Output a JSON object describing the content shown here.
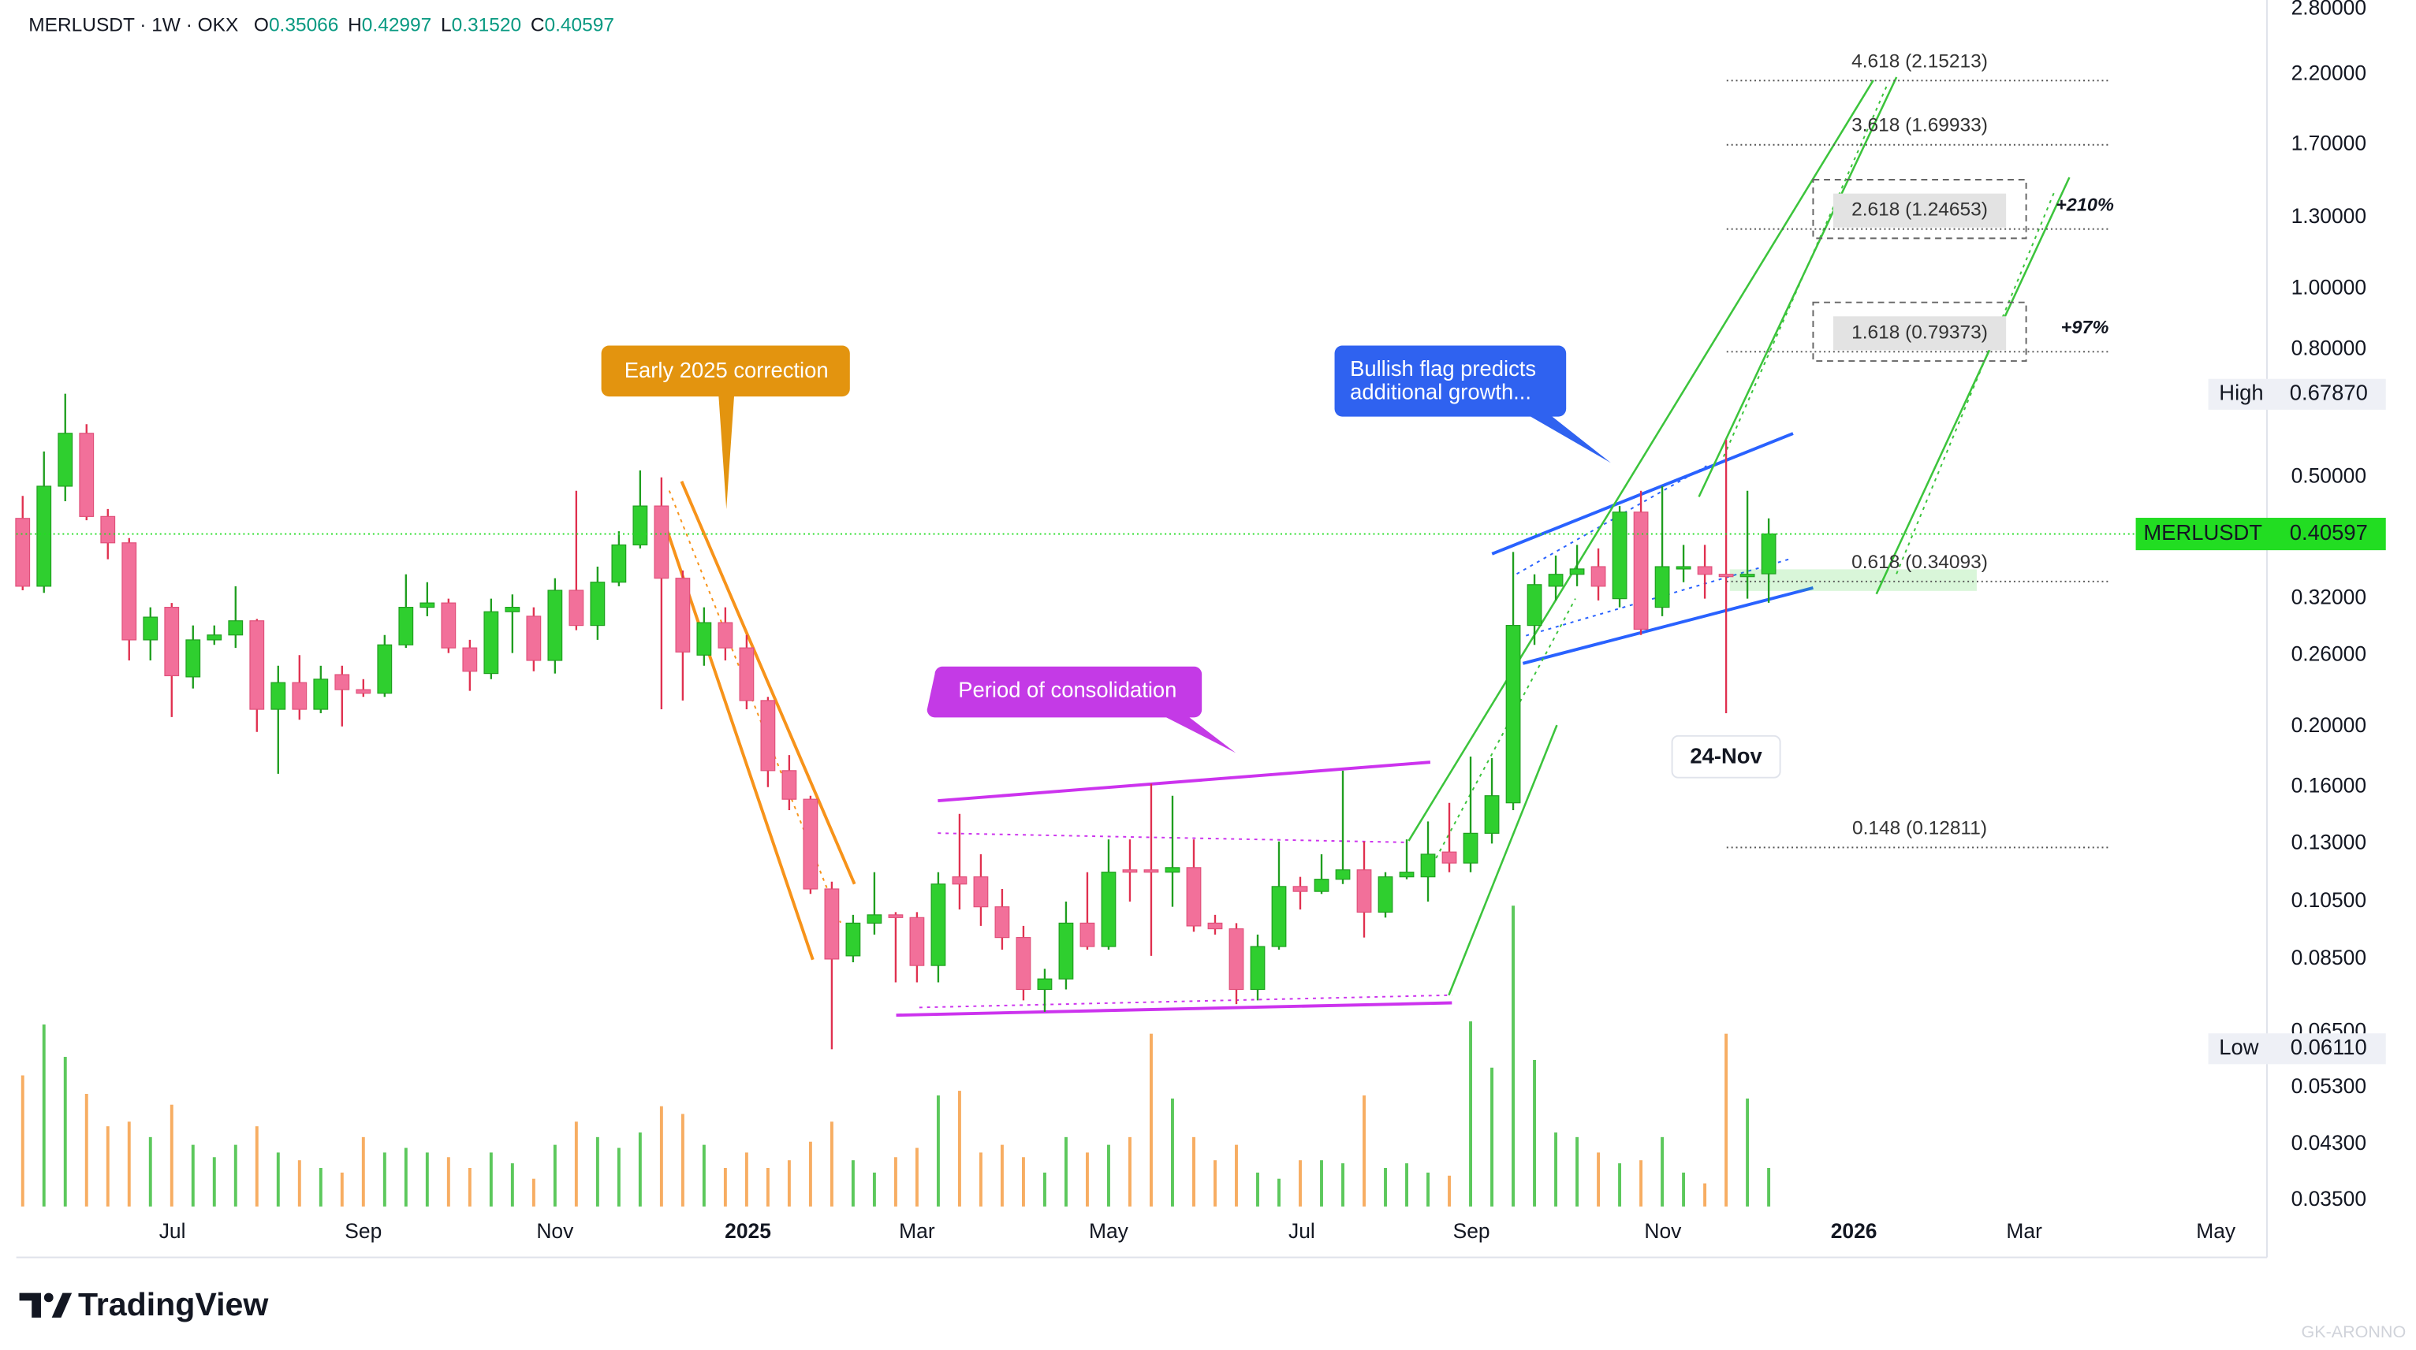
{
  "chart_data": {
    "type": "candlestick",
    "header": {
      "symbol": "MERLUSDT · 1W · OKX",
      "ohlc": [
        {
          "key": "O",
          "value": "0.35066"
        },
        {
          "key": "H",
          "value": "0.42997"
        },
        {
          "key": "L",
          "value": "0.31520"
        },
        {
          "key": "C",
          "value": "0.40597"
        }
      ]
    },
    "open": [
      0.43,
      0.335,
      0.484,
      0.588,
      0.433,
      0.393,
      0.275,
      0.31,
      0.24,
      0.275,
      0.28,
      0.295,
      0.213,
      0.235,
      0.213,
      0.242,
      0.229,
      0.226,
      0.27,
      0.31,
      0.315,
      0.267,
      0.243,
      0.305,
      0.3,
      0.255,
      0.33,
      0.29,
      0.34,
      0.39,
      0.45,
      0.345,
      0.26,
      0.293,
      0.267,
      0.22,
      0.17,
      0.153,
      0.11,
      0.086,
      0.097,
      0.1,
      0.099,
      0.083,
      0.115,
      0.115,
      0.103,
      0.092,
      0.076,
      0.079,
      0.097,
      0.089,
      0.118,
      0.118,
      0.117,
      0.119,
      0.097,
      0.095,
      0.076,
      0.089,
      0.111,
      0.109,
      0.114,
      0.118,
      0.101,
      0.115,
      0.115,
      0.126,
      0.121,
      0.135,
      0.151,
      0.29,
      0.335,
      0.35,
      0.36,
      0.32,
      0.44,
      0.31,
      0.357,
      0.36,
      0.35,
      0.348,
      0.35066
    ],
    "high": [
      0.467,
      0.55,
      0.68,
      0.608,
      0.445,
      0.4,
      0.31,
      0.315,
      0.29,
      0.29,
      0.335,
      0.297,
      0.25,
      0.26,
      0.25,
      0.25,
      0.238,
      0.28,
      0.35,
      0.34,
      0.32,
      0.275,
      0.32,
      0.325,
      0.31,
      0.345,
      0.476,
      0.36,
      0.41,
      0.513,
      0.5,
      0.355,
      0.31,
      0.31,
      0.28,
      0.223,
      0.18,
      0.155,
      0.113,
      0.1,
      0.117,
      0.101,
      0.101,
      0.117,
      0.145,
      0.125,
      0.11,
      0.096,
      0.082,
      0.105,
      0.117,
      0.132,
      0.132,
      0.162,
      0.155,
      0.132,
      0.1,
      0.097,
      0.093,
      0.131,
      0.115,
      0.125,
      0.17,
      0.131,
      0.117,
      0.132,
      0.141,
      0.151,
      0.179,
      0.178,
      0.38,
      0.35,
      0.375,
      0.39,
      0.385,
      0.45,
      0.476,
      0.484,
      0.39,
      0.39,
      0.574,
      0.476,
      0.42997
    ],
    "low": [
      0.33,
      0.327,
      0.458,
      0.427,
      0.37,
      0.255,
      0.255,
      0.207,
      0.23,
      0.27,
      0.267,
      0.196,
      0.168,
      0.205,
      0.21,
      0.2,
      0.223,
      0.223,
      0.267,
      0.3,
      0.262,
      0.228,
      0.238,
      0.262,
      0.245,
      0.243,
      0.285,
      0.275,
      0.335,
      0.385,
      0.213,
      0.22,
      0.25,
      0.255,
      0.213,
      0.16,
      0.147,
      0.108,
      0.061,
      0.084,
      0.093,
      0.078,
      0.078,
      0.078,
      0.102,
      0.096,
      0.088,
      0.073,
      0.07,
      0.076,
      0.088,
      0.088,
      0.105,
      0.086,
      0.103,
      0.094,
      0.093,
      0.072,
      0.073,
      0.088,
      0.102,
      0.108,
      0.112,
      0.092,
      0.099,
      0.114,
      0.105,
      0.117,
      0.117,
      0.13,
      0.147,
      0.27,
      0.318,
      0.335,
      0.318,
      0.31,
      0.28,
      0.3,
      0.34,
      0.32,
      0.21,
      0.32,
      0.3152
    ],
    "close": [
      0.335,
      0.484,
      0.588,
      0.433,
      0.393,
      0.275,
      0.299,
      0.241,
      0.275,
      0.28,
      0.295,
      0.213,
      0.235,
      0.213,
      0.238,
      0.229,
      0.226,
      0.27,
      0.31,
      0.315,
      0.267,
      0.245,
      0.305,
      0.31,
      0.255,
      0.33,
      0.29,
      0.34,
      0.39,
      0.45,
      0.345,
      0.263,
      0.293,
      0.267,
      0.22,
      0.17,
      0.153,
      0.11,
      0.085,
      0.097,
      0.1,
      0.099,
      0.083,
      0.112,
      0.112,
      0.103,
      0.092,
      0.076,
      0.079,
      0.097,
      0.089,
      0.117,
      0.117,
      0.117,
      0.119,
      0.096,
      0.095,
      0.076,
      0.089,
      0.111,
      0.109,
      0.114,
      0.118,
      0.101,
      0.115,
      0.117,
      0.125,
      0.121,
      0.135,
      0.155,
      0.29,
      0.337,
      0.35,
      0.357,
      0.335,
      0.44,
      0.286,
      0.36,
      0.36,
      0.35,
      0.348,
      0.35,
      0.40597
    ],
    "volume": [
      85,
      118,
      97,
      73,
      52,
      55,
      45,
      66,
      40,
      32,
      40,
      52,
      35,
      30,
      25,
      22,
      45,
      35,
      38,
      35,
      32,
      25,
      35,
      28,
      18,
      40,
      55,
      45,
      38,
      48,
      65,
      60,
      40,
      25,
      35,
      25,
      30,
      42,
      55,
      30,
      22,
      32,
      38,
      72,
      75,
      35,
      40,
      32,
      22,
      45,
      35,
      40,
      45,
      112,
      70,
      45,
      30,
      40,
      22,
      18,
      30,
      30,
      28,
      72,
      25,
      28,
      22,
      20,
      120,
      90,
      195,
      95,
      48,
      45,
      35,
      28,
      30,
      45,
      22,
      15,
      112,
      70,
      25
    ],
    "up_color": "#2fcf2f",
    "down_color": "#f2709a",
    "up_volume_color": "#5cc85c",
    "down_volume_color": "#f7ad62",
    "log_scale": true,
    "grid": false,
    "ylim": [
      0.0342,
      2.895
    ],
    "yticks": [
      {
        "value": 2.8,
        "label": "2.80000"
      },
      {
        "value": 2.2,
        "label": "2.20000"
      },
      {
        "value": 1.7,
        "label": "1.70000"
      },
      {
        "value": 1.3,
        "label": "1.30000"
      },
      {
        "value": 1.0,
        "label": "1.00000"
      },
      {
        "value": 0.8,
        "label": "0.80000"
      },
      {
        "value": 0.5,
        "label": "0.50000"
      },
      {
        "value": 0.32,
        "label": "0.32000"
      },
      {
        "value": 0.26,
        "label": "0.26000"
      },
      {
        "value": 0.2,
        "label": "0.20000"
      },
      {
        "value": 0.16,
        "label": "0.16000"
      },
      {
        "value": 0.13,
        "label": "0.13000"
      },
      {
        "value": 0.105,
        "label": "0.10500"
      },
      {
        "value": 0.085,
        "label": "0.08500"
      },
      {
        "value": 0.065,
        "label": "0.06500"
      },
      {
        "value": 0.053,
        "label": "0.05300"
      },
      {
        "value": 0.043,
        "label": "0.04300"
      },
      {
        "value": 0.035,
        "label": "0.03500"
      }
    ],
    "xlim": [
      -0.3,
      105.4
    ],
    "xticks": [
      {
        "value": 7.03,
        "label": "Jul"
      },
      {
        "value": 16.0,
        "label": "Sep"
      },
      {
        "value": 25.0,
        "label": "Nov"
      },
      {
        "value": 34.06,
        "label": "2025"
      },
      {
        "value": 42.0,
        "label": "Mar"
      },
      {
        "value": 51.0,
        "label": "May"
      },
      {
        "value": 60.07,
        "label": "Jul"
      },
      {
        "value": 68.04,
        "label": "Sep"
      },
      {
        "value": 77.03,
        "label": "Nov"
      },
      {
        "value": 86.0,
        "label": "2026"
      },
      {
        "value": 94.0,
        "label": "Mar"
      },
      {
        "value": 103.0,
        "label": "May"
      }
    ],
    "price_labels": [
      {
        "name": "High",
        "value": 0.6787,
        "label": "0.67870"
      },
      {
        "name": "MERLUSDT",
        "value": 0.40597,
        "label": "0.40597",
        "color": "#22dd22"
      },
      {
        "name": "Low",
        "value": 0.0611,
        "label": "0.06110"
      }
    ],
    "fib_levels": [
      {
        "value": 2.15213,
        "label": "4.618 (2.15213)"
      },
      {
        "value": 1.69933,
        "label": "3.618 (1.69933)"
      },
      {
        "value": 1.24653,
        "label": "2.618 (1.24653)",
        "gain": "+210%"
      },
      {
        "value": 0.79373,
        "label": "1.618 (0.79373)",
        "gain": "+97%"
      },
      {
        "value": 0.34093,
        "label": "0.618 (0.34093)"
      },
      {
        "value": 0.12811,
        "label": "0.148 (0.12811)"
      }
    ],
    "date_label": {
      "x": 80,
      "label": "24-Nov"
    },
    "annotations": {
      "correction": "Early 2025 correction",
      "consolidation": "Period of consolidation",
      "flag": [
        "Bullish flag predicts",
        "additional growth..."
      ]
    },
    "brand": "TradingView",
    "watermark": "GK-ARONNO"
  }
}
